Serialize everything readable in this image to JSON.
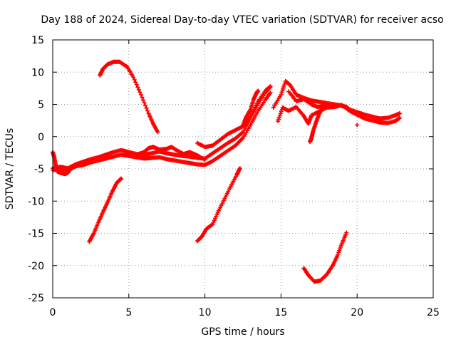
{
  "chart_data": {
    "type": "scatter",
    "title": "Day 188 of 2024, Sidereal Day-to-day VTEC variation (SDTVAR) for receiver acso",
    "xlabel": "GPS time / hours",
    "ylabel": "SDTVAR / TECUs",
    "xlim": [
      0,
      25
    ],
    "ylim": [
      -25,
      15
    ],
    "xticks": [
      "0",
      "5",
      "10",
      "15",
      "20",
      "25"
    ],
    "yticks": [
      "15",
      "10",
      "5",
      "0",
      "-5",
      "-10",
      "-15",
      "-20",
      "-25"
    ],
    "grid": true,
    "marker": "+",
    "color": "#ff0000",
    "series": [
      {
        "name": "arc-main-low",
        "points": [
          [
            0.0,
            -5.2
          ],
          [
            0.5,
            -5.0
          ],
          [
            1.0,
            -5.3
          ],
          [
            1.5,
            -4.6
          ],
          [
            2.0,
            -4.4
          ],
          [
            2.5,
            -4.0
          ],
          [
            3.0,
            -3.7
          ],
          [
            3.5,
            -3.4
          ],
          [
            4.0,
            -3.1
          ],
          [
            4.5,
            -2.8
          ],
          [
            5.0,
            -3.0
          ],
          [
            5.5,
            -3.2
          ],
          [
            6.0,
            -3.4
          ],
          [
            6.5,
            -3.3
          ],
          [
            7.0,
            -3.2
          ],
          [
            7.5,
            -3.5
          ],
          [
            8.0,
            -3.7
          ],
          [
            8.5,
            -3.9
          ],
          [
            9.0,
            -4.1
          ],
          [
            9.5,
            -4.3
          ],
          [
            10.0,
            -4.4
          ],
          [
            10.5,
            -3.8
          ],
          [
            11.0,
            -3.0
          ],
          [
            11.5,
            -2.2
          ],
          [
            12.0,
            -1.4
          ],
          [
            12.5,
            -0.2
          ],
          [
            13.0,
            1.8
          ],
          [
            13.5,
            4.0
          ],
          [
            14.0,
            5.8
          ],
          [
            14.3,
            6.8
          ]
        ]
      },
      {
        "name": "arc-main-high",
        "points": [
          [
            0.0,
            -4.9
          ],
          [
            0.5,
            -4.7
          ],
          [
            1.0,
            -4.9
          ],
          [
            1.5,
            -4.3
          ],
          [
            2.0,
            -3.9
          ],
          [
            2.5,
            -3.5
          ],
          [
            3.0,
            -3.2
          ],
          [
            3.5,
            -2.8
          ],
          [
            4.0,
            -2.4
          ],
          [
            4.5,
            -2.1
          ],
          [
            5.0,
            -2.4
          ],
          [
            5.5,
            -2.7
          ],
          [
            6.0,
            -2.8
          ],
          [
            6.5,
            -2.6
          ],
          [
            7.0,
            -2.3
          ],
          [
            7.5,
            -2.6
          ],
          [
            8.0,
            -2.8
          ],
          [
            8.5,
            -3.0
          ],
          [
            9.0,
            -3.1
          ],
          [
            9.5,
            -3.3
          ],
          [
            10.0,
            -3.4
          ],
          [
            10.5,
            -2.6
          ],
          [
            11.0,
            -1.8
          ],
          [
            11.5,
            -1.0
          ],
          [
            12.0,
            -0.3
          ],
          [
            12.5,
            0.7
          ],
          [
            13.0,
            2.9
          ],
          [
            13.5,
            5.1
          ],
          [
            14.0,
            6.9
          ],
          [
            14.3,
            7.8
          ]
        ]
      },
      {
        "name": "arc-start-dip",
        "points": [
          [
            0.0,
            -2.4
          ],
          [
            0.1,
            -3.2
          ],
          [
            0.2,
            -4.5
          ],
          [
            0.3,
            -5.4
          ],
          [
            0.5,
            -5.6
          ],
          [
            0.8,
            -5.8
          ],
          [
            1.0,
            -5.6
          ],
          [
            1.2,
            -4.8
          ],
          [
            1.5,
            -4.6
          ]
        ]
      },
      {
        "name": "arc-midday-bump",
        "points": [
          [
            5.5,
            -2.8
          ],
          [
            6.0,
            -2.4
          ],
          [
            6.3,
            -1.8
          ],
          [
            6.6,
            -1.6
          ],
          [
            7.0,
            -2.0
          ],
          [
            7.5,
            -1.9
          ],
          [
            7.8,
            -1.6
          ],
          [
            8.2,
            -2.2
          ],
          [
            8.6,
            -2.7
          ],
          [
            9.0,
            -2.4
          ],
          [
            9.5,
            -2.9
          ],
          [
            10.0,
            -3.6
          ]
        ]
      },
      {
        "name": "arc-rising-a",
        "points": [
          [
            9.5,
            -1.0
          ],
          [
            10.0,
            -1.6
          ],
          [
            10.5,
            -1.4
          ],
          [
            11.0,
            -0.5
          ],
          [
            11.5,
            0.4
          ],
          [
            12.0,
            1.0
          ],
          [
            12.5,
            1.6
          ],
          [
            13.0,
            3.2
          ],
          [
            13.5,
            5.5
          ],
          [
            14.0,
            7.2
          ],
          [
            14.3,
            7.7
          ]
        ]
      },
      {
        "name": "arc-evening",
        "points": [
          [
            14.5,
            4.5
          ],
          [
            15.0,
            6.5
          ],
          [
            15.3,
            8.6
          ],
          [
            15.6,
            8.0
          ],
          [
            16.0,
            6.5
          ],
          [
            16.5,
            6.0
          ],
          [
            17.0,
            5.6
          ],
          [
            17.5,
            5.4
          ],
          [
            18.0,
            5.2
          ],
          [
            18.5,
            5.0
          ],
          [
            19.0,
            4.8
          ],
          [
            19.3,
            4.6
          ],
          [
            19.5,
            4.2
          ],
          [
            20.0,
            3.8
          ],
          [
            20.5,
            3.4
          ],
          [
            21.0,
            3.1
          ],
          [
            21.5,
            2.8
          ],
          [
            22.0,
            2.9
          ],
          [
            22.5,
            3.3
          ],
          [
            22.8,
            3.6
          ]
        ]
      },
      {
        "name": "arc-evening-low",
        "points": [
          [
            14.8,
            2.4
          ],
          [
            15.1,
            4.5
          ],
          [
            15.5,
            4.0
          ],
          [
            16.0,
            4.6
          ],
          [
            16.5,
            3.2
          ],
          [
            16.8,
            2.0
          ],
          [
            17.0,
            3.3
          ],
          [
            17.5,
            3.9
          ],
          [
            18.0,
            4.5
          ],
          [
            18.5,
            4.6
          ],
          [
            19.0,
            4.9
          ],
          [
            19.5,
            4.0
          ],
          [
            20.0,
            3.4
          ],
          [
            20.5,
            2.8
          ],
          [
            21.0,
            2.5
          ],
          [
            21.5,
            2.2
          ],
          [
            22.0,
            2.1
          ],
          [
            22.5,
            2.4
          ],
          [
            22.8,
            2.9
          ]
        ]
      },
      {
        "name": "arc-evening-split",
        "points": [
          [
            15.5,
            7.0
          ],
          [
            16.0,
            5.5
          ],
          [
            16.5,
            5.8
          ],
          [
            17.0,
            5.0
          ],
          [
            17.4,
            4.6
          ],
          [
            17.8,
            4.8
          ],
          [
            18.3,
            4.7
          ],
          [
            18.8,
            4.9
          ],
          [
            19.1,
            4.7
          ]
        ]
      },
      {
        "name": "arc-evening-drop",
        "points": [
          [
            17.7,
            4.3
          ],
          [
            17.5,
            3.5
          ],
          [
            17.3,
            2.2
          ],
          [
            17.1,
            0.8
          ],
          [
            17.0,
            -0.3
          ],
          [
            16.9,
            -0.8
          ]
        ]
      },
      {
        "name": "arc-rise-small",
        "points": [
          [
            12.5,
            1.7
          ],
          [
            12.7,
            3.0
          ],
          [
            13.0,
            4.2
          ],
          [
            13.2,
            5.8
          ],
          [
            13.4,
            6.8
          ],
          [
            13.5,
            7.1
          ]
        ]
      },
      {
        "name": "arc-morning-peak",
        "points": [
          [
            3.1,
            9.5
          ],
          [
            3.3,
            10.5
          ],
          [
            3.6,
            11.2
          ],
          [
            4.0,
            11.6
          ],
          [
            4.4,
            11.6
          ],
          [
            4.9,
            10.8
          ],
          [
            5.3,
            9.2
          ],
          [
            5.8,
            6.5
          ],
          [
            6.3,
            3.6
          ],
          [
            6.6,
            2.0
          ],
          [
            6.9,
            0.7
          ]
        ]
      },
      {
        "name": "arc-morning-rise",
        "points": [
          [
            2.4,
            -16.3
          ],
          [
            2.7,
            -15.0
          ],
          [
            3.0,
            -13.3
          ],
          [
            3.3,
            -11.7
          ],
          [
            3.6,
            -10.2
          ],
          [
            3.9,
            -8.6
          ],
          [
            4.2,
            -7.2
          ],
          [
            4.5,
            -6.5
          ]
        ]
      },
      {
        "name": "arc-afternoon-rise",
        "points": [
          [
            9.5,
            -16.2
          ],
          [
            9.8,
            -15.5
          ],
          [
            10.1,
            -14.3
          ],
          [
            10.5,
            -13.6
          ],
          [
            10.9,
            -11.5
          ],
          [
            11.3,
            -9.6
          ],
          [
            11.7,
            -7.7
          ],
          [
            12.1,
            -5.9
          ],
          [
            12.3,
            -4.9
          ]
        ]
      },
      {
        "name": "arc-night-dip",
        "points": [
          [
            16.5,
            -20.4
          ],
          [
            16.8,
            -21.5
          ],
          [
            17.2,
            -22.5
          ],
          [
            17.6,
            -22.3
          ],
          [
            18.0,
            -21.4
          ],
          [
            18.4,
            -20.0
          ],
          [
            18.7,
            -18.5
          ],
          [
            19.0,
            -16.6
          ],
          [
            19.3,
            -14.9
          ]
        ]
      },
      {
        "name": "isolated",
        "points": [
          [
            20.0,
            1.8
          ]
        ]
      }
    ]
  }
}
